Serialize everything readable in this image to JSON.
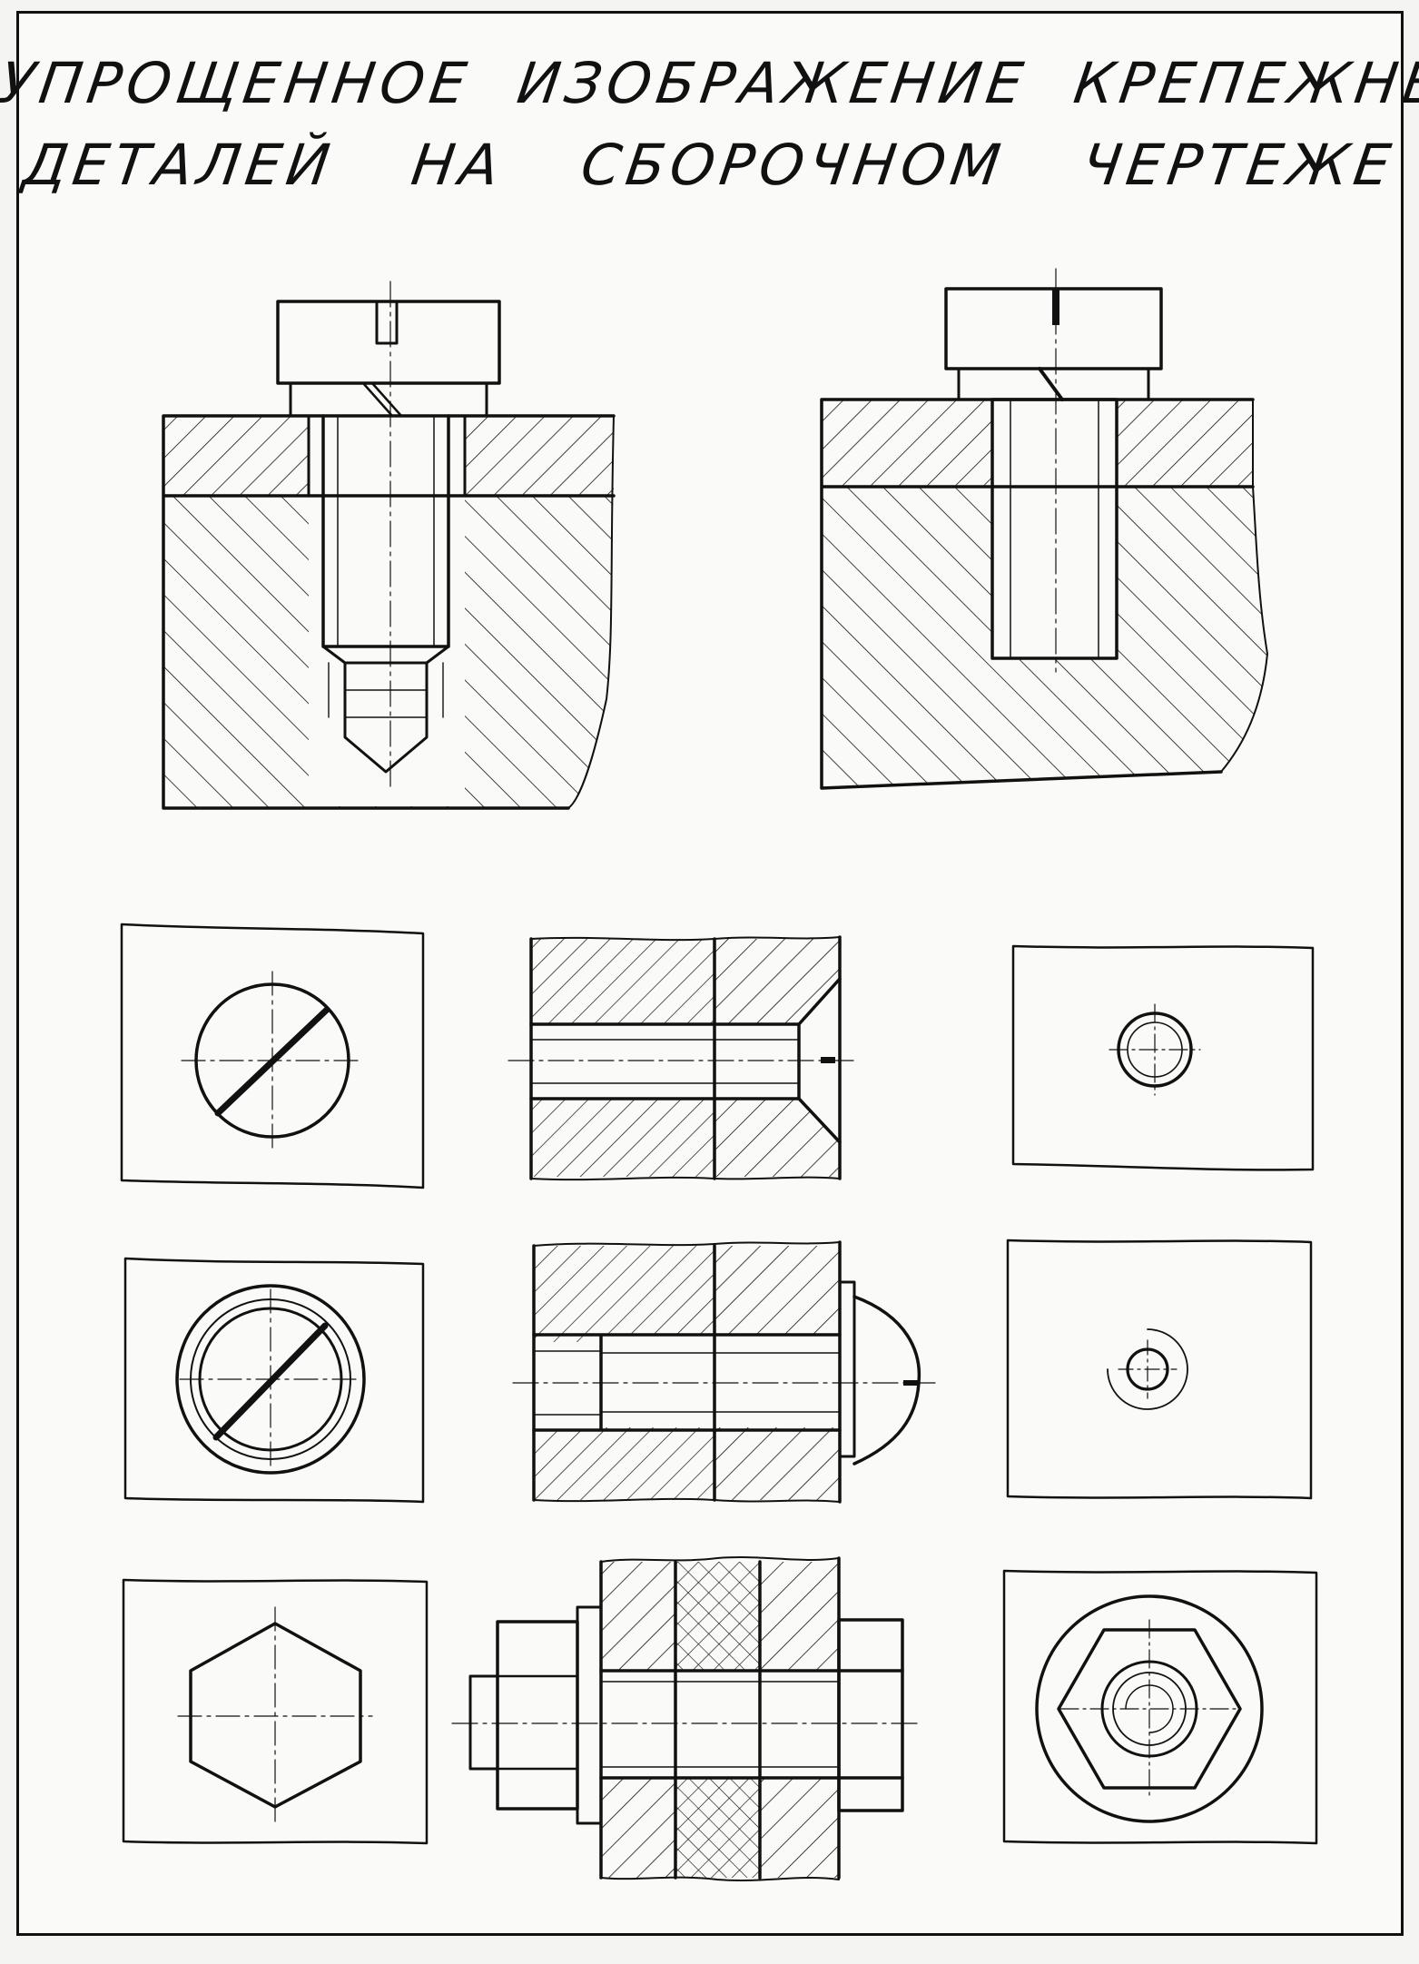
{
  "title": {
    "line1": "УПРОЩЕННОЕ ИЗОБРАЖЕНИЕ КРЕПЕЖНЫХ",
    "line2": "ДЕТАЛЕЙ НА СБОРОЧНОМ ЧЕРТЕЖЕ"
  },
  "colors": {
    "ink": "#111111",
    "paper": "#fafaf8"
  }
}
